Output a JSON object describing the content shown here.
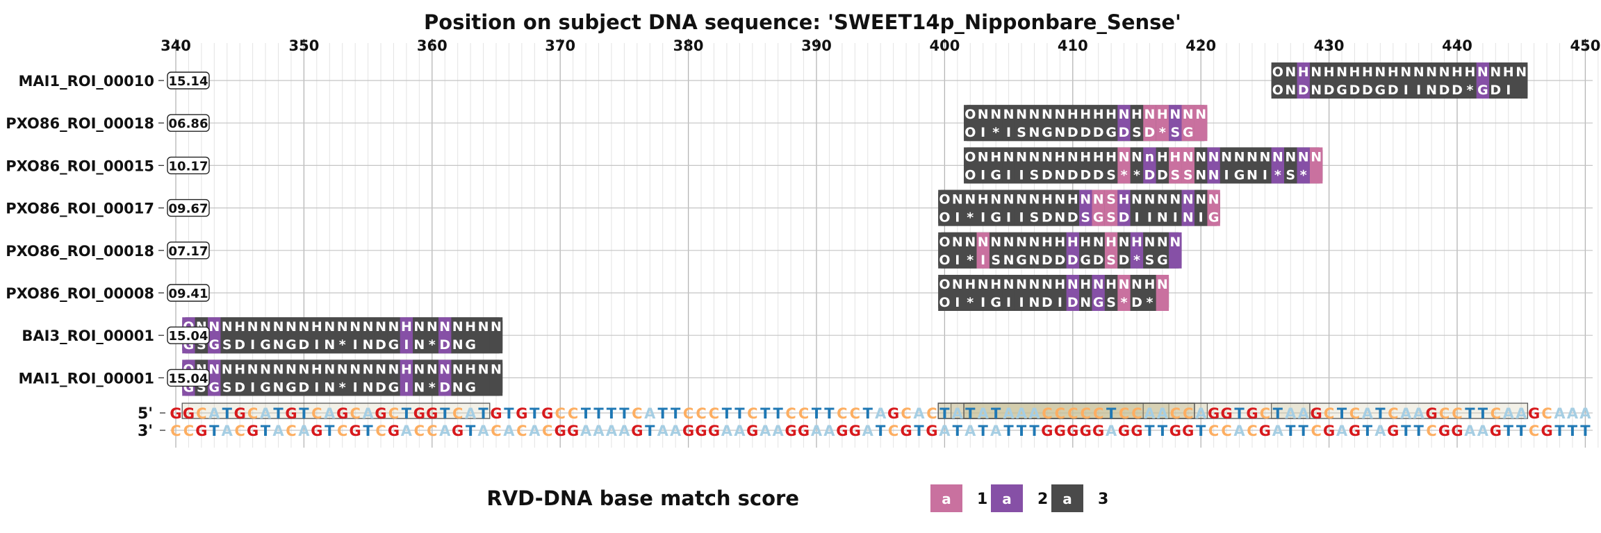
{
  "chart_data": {
    "type": "other",
    "title": "Position on subject DNA sequence: 'SWEET14p_Nipponbare_Sense'",
    "x_axis": {
      "min": 340,
      "max": 451,
      "ticks": [
        340,
        350,
        360,
        370,
        380,
        390,
        400,
        410,
        420,
        430,
        440,
        450
      ],
      "grid": true,
      "minor_step": 1
    },
    "sense_label": "5'",
    "antisense_label": "3'",
    "sequence_start": 340,
    "sense_sequence": "GGCATGCATGTCAGCAGCTGGTCATGTGTGCCTTTTCATTCCCTTCTTCCTTCCTAGCACTATATAAACCCCCTCCAACCAGGTGCTAAGCTCATCAAGCCTTCAAGCAAA",
    "antisense_sequence": "CCGTACGTACAGTCGTCGACCAGTACACACGGAAAAGTAAGGGAAGAAGGAAGGATCGTGATATATTTGGGGGAGGTTGGTCCACGATTCGAGTAGTTCGGAAGTTCGTTT",
    "base_colors": {
      "A": "#a6cee3",
      "T": "#1f78b4",
      "C": "#fdae61",
      "G": "#d7191c"
    },
    "highlighted_regions": [
      {
        "start": 341,
        "end": 364
      },
      {
        "start": 400,
        "end": 417
      },
      {
        "start": 402,
        "end": 420
      },
      {
        "start": 426,
        "end": 445
      },
      {
        "start": 401,
        "end": 428
      },
      {
        "start": 400,
        "end": 419
      },
      {
        "start": 400,
        "end": 415
      },
      {
        "start": 402,
        "end": 419
      }
    ],
    "rows": [
      {
        "name": "MAI1_ROI_00010",
        "score": "15.14",
        "start": 426,
        "top": "ONHNHNHHNHNNNNHHNNHN",
        "bottom": "ONDNDGDDGDIINDD*GDI",
        "match": [
          3,
          3,
          2,
          3,
          3,
          3,
          3,
          3,
          3,
          3,
          3,
          3,
          3,
          3,
          3,
          3,
          2,
          3,
          3,
          3
        ]
      },
      {
        "name": "PXO86_ROI_00018",
        "score": "06.86",
        "start": 402,
        "top": "ONNNNNNNHHHHNHNHNNN",
        "bottom": "OI*ISNGNDDDGDSD*SG",
        "match": [
          3,
          3,
          3,
          3,
          3,
          3,
          3,
          3,
          3,
          3,
          3,
          3,
          2,
          3,
          1,
          1,
          2,
          1,
          1
        ]
      },
      {
        "name": "PXO86_ROI_00015",
        "score": "10.17",
        "start": 402,
        "top": "ONHNNNNHNHHHNNnHHNNNNNNNNNNN",
        "bottom": "OIGIISDNDDDS**DDSSNNIGNI*S*",
        "match": [
          3,
          3,
          3,
          3,
          3,
          3,
          3,
          3,
          3,
          3,
          3,
          3,
          1,
          3,
          2,
          3,
          1,
          1,
          3,
          2,
          3,
          3,
          3,
          3,
          2,
          3,
          2,
          1
        ]
      },
      {
        "name": "PXO86_ROI_00017",
        "score": "09.67",
        "start": 400,
        "top": "ONNHNNNNHNHNNSHNNNNNNN",
        "bottom": "OI*IGIISDNDSGSDIININIG",
        "match": [
          3,
          3,
          3,
          3,
          3,
          3,
          3,
          3,
          3,
          3,
          3,
          2,
          1,
          1,
          2,
          3,
          3,
          3,
          3,
          2,
          3,
          1
        ]
      },
      {
        "name": "PXO86_ROI_00018",
        "score": "07.17",
        "start": 400,
        "top": "ONNNNNNNHHHHNHNHNNN",
        "bottom": "OI*ISNGNDDDGDSD*SG",
        "match": [
          3,
          3,
          3,
          1,
          3,
          3,
          3,
          3,
          3,
          3,
          2,
          3,
          3,
          1,
          3,
          2,
          3,
          3,
          2
        ]
      },
      {
        "name": "PXO86_ROI_00008",
        "score": "09.41",
        "start": 400,
        "top": "ONHNHNNNNHNHNHNNHN",
        "bottom": "OI*IGIINDIDNGS*D*",
        "match": [
          3,
          3,
          3,
          3,
          3,
          3,
          3,
          3,
          3,
          3,
          2,
          3,
          2,
          3,
          1,
          3,
          3,
          1
        ]
      },
      {
        "name": "BAI3_ROI_00001",
        "score": "15.04",
        "start": 341,
        "top": "ONNNHNNNNNHNNNNNNHNNNNHNN",
        "bottom": "GSGSDIGNGDIN*INDGIN*DNG",
        "match": [
          2,
          3,
          2,
          3,
          3,
          3,
          3,
          3,
          3,
          3,
          3,
          3,
          3,
          3,
          3,
          3,
          3,
          2,
          3,
          3,
          2,
          3,
          3,
          3,
          3
        ]
      },
      {
        "name": "MAI1_ROI_00001",
        "score": "15.04",
        "start": 341,
        "top": "ONNNHNNNNNHNNNNNNHNNNNHNN",
        "bottom": "GSGSDIGNGDIN*INDGIN*DNG",
        "match": [
          2,
          3,
          2,
          3,
          3,
          3,
          3,
          3,
          3,
          3,
          3,
          3,
          3,
          3,
          3,
          3,
          3,
          2,
          3,
          3,
          2,
          3,
          3,
          3,
          3
        ]
      }
    ],
    "legend": {
      "title": "RVD-DNA base match score",
      "items": [
        {
          "label": "1",
          "color": "#c9719f",
          "glyph": "a"
        },
        {
          "label": "2",
          "color": "#8650a6",
          "glyph": "a"
        },
        {
          "label": "3",
          "color": "#4a4a4a",
          "glyph": "a"
        }
      ]
    }
  }
}
